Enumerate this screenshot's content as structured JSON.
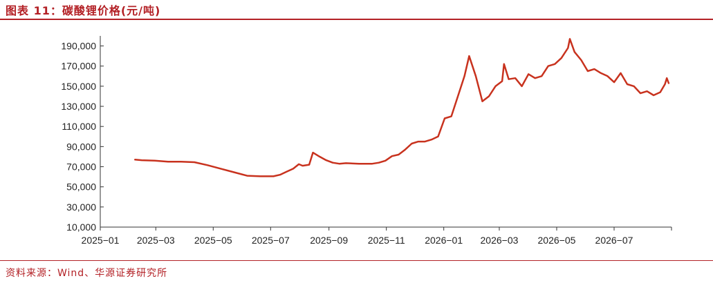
{
  "figure_title": "图表 11：碳酸锂价格(元/吨)",
  "source": "资料来源：Wind、华源证券研究所",
  "colors": {
    "accent": "#b32025",
    "line": "#c8321e",
    "axis": "#333333",
    "text": "#222222"
  },
  "chart_data": {
    "type": "line",
    "title": "",
    "xlabel": "",
    "ylabel": "",
    "ylim": [
      10000,
      200000
    ],
    "yticks": [
      10000,
      30000,
      50000,
      70000,
      90000,
      110000,
      130000,
      150000,
      170000,
      190000
    ],
    "ytick_labels": [
      "10,000",
      "30,000",
      "50,000",
      "70,000",
      "90,000",
      "110,000",
      "130,000",
      "150,000",
      "170,000",
      "190,000"
    ],
    "xlim": [
      "2025-01-01",
      "2026-08-31"
    ],
    "xticks": [
      "2025-01-01",
      "2025-03-01",
      "2025-05-01",
      "2025-07-01",
      "2025-09-01",
      "2025-11-01",
      "2026-01-01",
      "2026-03-01",
      "2026-05-01",
      "2026-07-01"
    ],
    "xtick_labels": [
      "2025−01",
      "2025−03",
      "2025−05",
      "2025−07",
      "2025−09",
      "2025−11",
      "2026−01",
      "2026−03",
      "2026−05",
      "2026−07"
    ],
    "grid": false,
    "legend": "none",
    "series": [
      {
        "x": [
          "2025-02-07",
          "2025-02-14",
          "2025-02-28",
          "2025-03-14",
          "2025-03-28",
          "2025-04-11",
          "2025-04-25",
          "2025-05-09",
          "2025-05-23",
          "2025-06-06",
          "2025-06-20",
          "2025-06-27",
          "2025-07-04",
          "2025-07-11",
          "2025-07-18",
          "2025-07-25",
          "2025-07-31",
          "2025-08-04",
          "2025-08-11",
          "2025-08-15",
          "2025-08-22",
          "2025-08-29",
          "2025-09-05",
          "2025-09-12",
          "2025-09-19",
          "2025-10-03",
          "2025-10-17",
          "2025-10-24",
          "2025-10-31",
          "2025-11-07",
          "2025-11-14",
          "2025-11-21",
          "2025-11-28",
          "2025-12-05",
          "2025-12-12",
          "2025-12-19",
          "2025-12-26",
          "2026-01-02",
          "2026-01-09",
          "2026-01-16",
          "2026-01-23",
          "2026-01-28",
          "2026-02-04",
          "2026-02-11",
          "2026-02-18",
          "2026-02-25",
          "2026-03-04",
          "2026-03-06",
          "2026-03-11",
          "2026-03-18",
          "2026-03-25",
          "2026-04-01",
          "2026-04-08",
          "2026-04-15",
          "2026-04-22",
          "2026-04-29",
          "2026-05-06",
          "2026-05-13",
          "2026-05-15",
          "2026-05-20",
          "2026-05-27",
          "2026-06-03",
          "2026-06-10",
          "2026-06-17",
          "2026-06-24",
          "2026-07-01",
          "2026-07-08",
          "2026-07-15",
          "2026-07-22",
          "2026-07-29",
          "2026-08-05",
          "2026-08-12",
          "2026-08-19",
          "2026-08-24",
          "2026-08-26",
          "2026-08-28"
        ],
        "y": [
          77000,
          76500,
          76000,
          75000,
          75000,
          74500,
          71500,
          68000,
          64500,
          61000,
          60500,
          60500,
          60500,
          62000,
          65000,
          68000,
          72500,
          71000,
          72000,
          84000,
          80000,
          76500,
          74000,
          73000,
          73500,
          73000,
          73000,
          74000,
          76000,
          80500,
          82000,
          87000,
          93000,
          95000,
          95000,
          97000,
          100000,
          118000,
          120000,
          140000,
          160000,
          180000,
          160000,
          135000,
          140000,
          150000,
          155000,
          172000,
          157000,
          158000,
          150000,
          162000,
          158000,
          160000,
          170000,
          172000,
          178000,
          188000,
          197000,
          184000,
          176000,
          165000,
          167000,
          163000,
          160000,
          154000,
          163000,
          152000,
          150000,
          143000,
          145000,
          141000,
          144000,
          152000,
          158000,
          153000
        ]
      }
    ]
  }
}
